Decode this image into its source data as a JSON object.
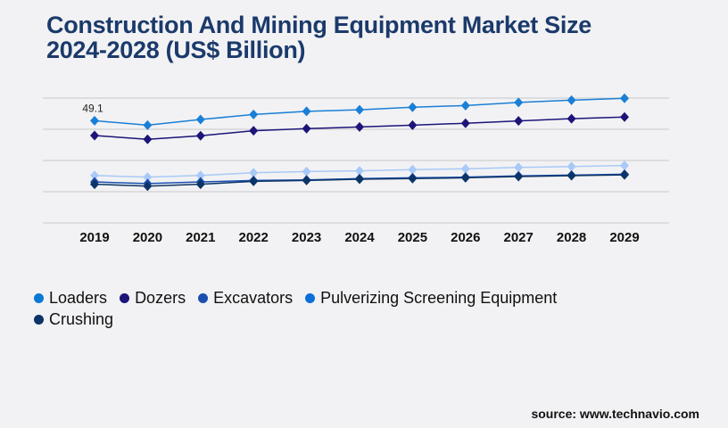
{
  "title_line1": "Construction And Mining Equipment Market Size",
  "title_line2": "2024-2028 (US$ Billion)",
  "source": "source: www.technavio.com",
  "chart_data": {
    "type": "line",
    "title": "Construction And Mining Equipment Market Size 2024-2028 (US$ Billion)",
    "categories": [
      "2019",
      "2020",
      "2021",
      "2022",
      "2023",
      "2024",
      "2025",
      "2026",
      "2027",
      "2028",
      "2029"
    ],
    "ylim": [
      0,
      60
    ],
    "grid": true,
    "legend_position": "bottom",
    "annotations": [
      {
        "series": "Loaders",
        "category": "2019",
        "text": "49.1"
      }
    ],
    "series": [
      {
        "name": "Loaders",
        "color": "#1a7fd6",
        "legend_color": "#0a78d4",
        "values": [
          49.1,
          47.0,
          49.7,
          52.1,
          53.6,
          54.4,
          55.6,
          56.4,
          57.9,
          59.0,
          59.9
        ]
      },
      {
        "name": "Dozers",
        "color": "#1c1478",
        "legend_color": "#1c1478",
        "values": [
          42.0,
          40.2,
          41.9,
          44.3,
          45.3,
          46.1,
          47.0,
          47.9,
          49.0,
          50.1,
          50.9
        ]
      },
      {
        "name": "Excavators",
        "color": "#1a4fb0",
        "legend_color": "#1a4fb0",
        "values": [
          19.7,
          18.9,
          19.7,
          20.4,
          20.7,
          21.3,
          21.7,
          22.0,
          22.6,
          23.0,
          23.4
        ]
      },
      {
        "name": "Pulverizing Screening Equipment",
        "color": "#a9c9f7",
        "legend_color": "#0a6fd6",
        "values": [
          22.8,
          22.0,
          22.8,
          24.1,
          24.7,
          25.0,
          25.6,
          26.0,
          26.7,
          27.1,
          27.6
        ]
      },
      {
        "name": "Crushing",
        "color": "#0c3466",
        "legend_color": "#0c3466",
        "values": [
          18.6,
          17.7,
          18.6,
          20.0,
          20.4,
          21.0,
          21.3,
          21.7,
          22.3,
          22.7,
          23.1
        ]
      }
    ]
  }
}
